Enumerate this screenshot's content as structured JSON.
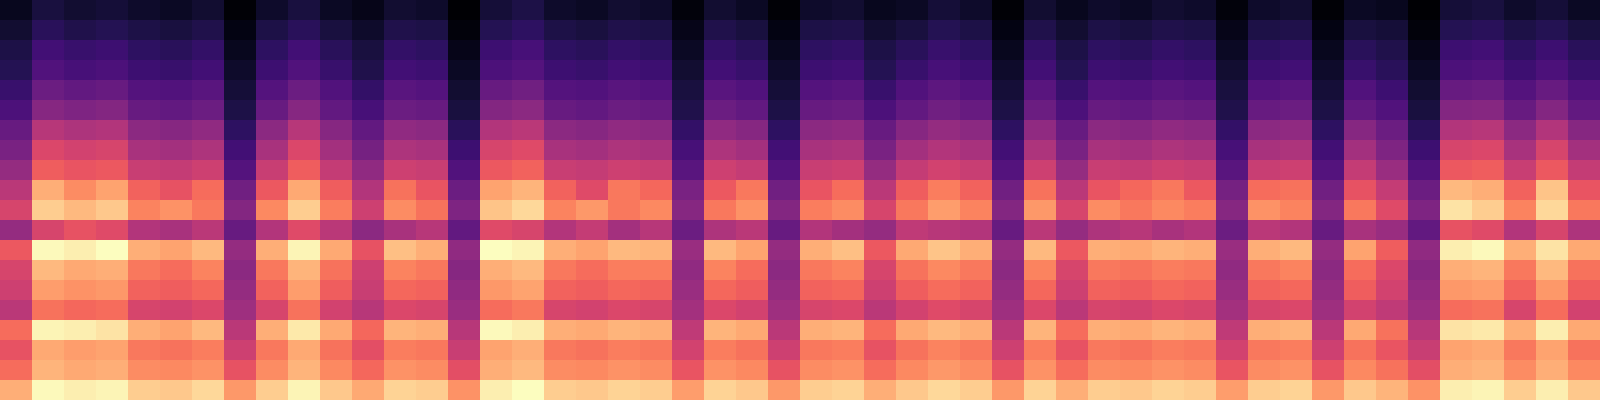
{
  "chart_data": {
    "type": "heatmap",
    "tick_labels": false,
    "color": "magma",
    "values": [
      [
        12,
        17,
        15,
        16,
        14,
        13,
        15,
        8,
        14,
        17,
        13,
        11,
        15,
        14,
        7,
        16,
        18,
        14,
        13,
        15,
        14,
        9,
        15,
        13,
        8,
        14,
        15,
        12,
        13,
        16,
        14,
        8,
        15,
        12,
        14,
        13,
        15,
        14,
        9,
        14,
        15,
        8,
        13,
        12,
        7,
        16,
        17,
        14,
        16,
        13
      ],
      [
        15,
        21,
        19,
        20,
        18,
        17,
        19,
        10,
        18,
        21,
        17,
        14,
        19,
        18,
        9,
        20,
        22,
        18,
        17,
        19,
        18,
        11,
        19,
        17,
        10,
        18,
        19,
        15,
        17,
        20,
        18,
        10,
        19,
        15,
        18,
        17,
        19,
        18,
        11,
        18,
        19,
        10,
        17,
        16,
        9,
        20,
        21,
        18,
        20,
        17
      ],
      [
        18,
        26,
        24,
        25,
        22,
        21,
        23,
        12,
        22,
        26,
        21,
        17,
        23,
        22,
        11,
        25,
        27,
        22,
        21,
        23,
        22,
        13,
        23,
        21,
        12,
        22,
        23,
        18,
        21,
        24,
        22,
        12,
        23,
        18,
        22,
        21,
        23,
        22,
        13,
        22,
        23,
        12,
        21,
        19,
        11,
        25,
        26,
        22,
        25,
        21
      ],
      [
        20,
        29,
        27,
        28,
        25,
        24,
        26,
        14,
        25,
        29,
        24,
        19,
        26,
        25,
        13,
        28,
        30,
        25,
        24,
        26,
        25,
        15,
        26,
        24,
        14,
        25,
        26,
        20,
        24,
        27,
        25,
        14,
        26,
        20,
        25,
        24,
        26,
        25,
        15,
        25,
        26,
        14,
        24,
        21,
        13,
        28,
        29,
        25,
        28,
        24
      ],
      [
        24,
        35,
        33,
        34,
        30,
        29,
        31,
        16,
        30,
        35,
        29,
        23,
        31,
        30,
        15,
        34,
        36,
        30,
        29,
        31,
        30,
        17,
        31,
        29,
        16,
        30,
        31,
        24,
        29,
        32,
        30,
        16,
        31,
        24,
        30,
        29,
        31,
        30,
        17,
        30,
        31,
        16,
        29,
        25,
        15,
        34,
        35,
        30,
        34,
        29
      ],
      [
        28,
        41,
        39,
        40,
        34,
        33,
        35,
        18,
        34,
        41,
        33,
        27,
        35,
        34,
        17,
        40,
        42,
        34,
        33,
        35,
        34,
        19,
        35,
        33,
        18,
        34,
        35,
        28,
        33,
        36,
        34,
        18,
        35,
        28,
        34,
        33,
        35,
        34,
        19,
        34,
        35,
        18,
        33,
        29,
        17,
        40,
        41,
        34,
        40,
        33
      ],
      [
        34,
        51,
        49,
        50,
        42,
        41,
        43,
        22,
        42,
        51,
        41,
        33,
        43,
        42,
        21,
        50,
        52,
        42,
        41,
        43,
        42,
        23,
        43,
        41,
        22,
        42,
        43,
        34,
        41,
        44,
        42,
        22,
        43,
        34,
        42,
        41,
        43,
        42,
        23,
        42,
        43,
        22,
        41,
        35,
        21,
        50,
        51,
        42,
        50,
        41
      ],
      [
        38,
        59,
        57,
        58,
        48,
        47,
        49,
        26,
        48,
        59,
        47,
        37,
        49,
        48,
        25,
        58,
        60,
        48,
        47,
        49,
        48,
        27,
        49,
        47,
        26,
        48,
        49,
        38,
        47,
        50,
        48,
        26,
        49,
        38,
        48,
        47,
        49,
        48,
        27,
        48,
        49,
        26,
        47,
        39,
        25,
        58,
        59,
        48,
        58,
        47
      ],
      [
        44,
        65,
        63,
        64,
        55,
        54,
        56,
        30,
        55,
        65,
        54,
        43,
        56,
        55,
        29,
        64,
        66,
        55,
        54,
        56,
        55,
        31,
        56,
        54,
        30,
        55,
        56,
        44,
        54,
        57,
        55,
        30,
        56,
        44,
        55,
        54,
        56,
        55,
        31,
        55,
        56,
        30,
        54,
        45,
        29,
        64,
        65,
        55,
        64,
        54
      ],
      [
        52,
        80,
        74,
        78,
        66,
        62,
        68,
        36,
        64,
        79,
        65,
        50,
        69,
        63,
        35,
        78,
        81,
        66,
        60,
        70,
        67,
        38,
        64,
        70,
        36,
        63,
        68,
        52,
        65,
        71,
        66,
        36,
        69,
        52,
        63,
        67,
        70,
        64,
        37,
        68,
        69,
        36,
        62,
        54,
        35,
        82,
        80,
        66,
        84,
        63
      ],
      [
        58,
        86,
        82,
        85,
        72,
        75,
        70,
        40,
        73,
        86,
        71,
        56,
        74,
        69,
        39,
        84,
        88,
        72,
        76,
        70,
        73,
        41,
        70,
        75,
        40,
        71,
        74,
        58,
        70,
        77,
        72,
        40,
        76,
        58,
        74,
        70,
        73,
        71,
        41,
        75,
        72,
        40,
        70,
        60,
        39,
        90,
        86,
        72,
        88,
        70
      ],
      [
        44,
        58,
        62,
        60,
        50,
        48,
        52,
        34,
        50,
        60,
        52,
        42,
        48,
        51,
        33,
        60,
        58,
        50,
        54,
        47,
        51,
        35,
        49,
        52,
        34,
        50,
        47,
        44,
        53,
        51,
        50,
        34,
        52,
        44,
        49,
        51,
        48,
        50,
        35,
        52,
        50,
        34,
        48,
        45,
        33,
        62,
        60,
        50,
        58,
        49
      ],
      [
        64,
        94,
        92,
        95,
        80,
        78,
        82,
        44,
        80,
        93,
        79,
        62,
        83,
        80,
        43,
        95,
        93,
        80,
        78,
        82,
        81,
        45,
        82,
        78,
        44,
        80,
        83,
        64,
        79,
        84,
        80,
        44,
        82,
        64,
        80,
        79,
        81,
        80,
        45,
        80,
        82,
        44,
        78,
        65,
        43,
        92,
        94,
        80,
        90,
        79
      ],
      [
        58,
        82,
        79,
        80,
        70,
        68,
        72,
        42,
        70,
        81,
        69,
        56,
        72,
        70,
        41,
        80,
        82,
        70,
        68,
        71,
        71,
        43,
        72,
        68,
        42,
        70,
        72,
        58,
        69,
        73,
        70,
        42,
        72,
        58,
        70,
        69,
        71,
        70,
        43,
        70,
        72,
        42,
        68,
        59,
        41,
        80,
        81,
        70,
        82,
        69
      ],
      [
        56,
        77,
        75,
        76,
        66,
        65,
        67,
        44,
        66,
        77,
        65,
        55,
        67,
        66,
        43,
        76,
        78,
        66,
        65,
        67,
        66,
        45,
        67,
        65,
        44,
        66,
        67,
        56,
        65,
        68,
        66,
        44,
        67,
        56,
        66,
        65,
        67,
        66,
        45,
        66,
        67,
        44,
        65,
        57,
        43,
        76,
        77,
        66,
        76,
        65
      ],
      [
        52,
        69,
        67,
        68,
        58,
        57,
        59,
        46,
        58,
        69,
        57,
        51,
        59,
        58,
        45,
        68,
        70,
        58,
        57,
        59,
        58,
        47,
        59,
        57,
        46,
        58,
        59,
        52,
        57,
        60,
        58,
        46,
        59,
        52,
        58,
        57,
        59,
        58,
        47,
        58,
        59,
        46,
        57,
        53,
        45,
        68,
        69,
        58,
        68,
        57
      ],
      [
        68,
        93,
        92,
        90,
        80,
        78,
        82,
        52,
        80,
        91,
        79,
        67,
        81,
        80,
        51,
        94,
        92,
        80,
        79,
        81,
        80,
        53,
        81,
        79,
        52,
        80,
        81,
        68,
        79,
        82,
        80,
        52,
        81,
        68,
        80,
        79,
        81,
        80,
        53,
        80,
        81,
        52,
        79,
        69,
        51,
        90,
        91,
        80,
        92,
        79
      ],
      [
        62,
        79,
        77,
        78,
        70,
        69,
        71,
        56,
        70,
        79,
        69,
        61,
        71,
        70,
        55,
        78,
        80,
        70,
        69,
        71,
        70,
        57,
        71,
        69,
        56,
        70,
        71,
        62,
        69,
        72,
        70,
        56,
        71,
        62,
        70,
        69,
        71,
        70,
        57,
        70,
        71,
        56,
        69,
        63,
        55,
        78,
        79,
        70,
        78,
        69
      ],
      [
        68,
        81,
        79,
        80,
        74,
        73,
        75,
        62,
        74,
        81,
        73,
        67,
        75,
        74,
        61,
        80,
        82,
        74,
        73,
        75,
        74,
        63,
        75,
        73,
        62,
        74,
        75,
        68,
        73,
        76,
        74,
        62,
        75,
        68,
        74,
        73,
        75,
        74,
        63,
        74,
        75,
        62,
        73,
        69,
        61,
        80,
        81,
        74,
        80,
        73
      ],
      [
        80,
        94,
        92,
        93,
        86,
        85,
        88,
        76,
        86,
        93,
        85,
        79,
        87,
        86,
        75,
        92,
        95,
        86,
        85,
        87,
        86,
        77,
        87,
        85,
        76,
        86,
        87,
        80,
        85,
        88,
        86,
        76,
        87,
        80,
        86,
        85,
        87,
        86,
        77,
        86,
        87,
        76,
        85,
        81,
        75,
        92,
        93,
        86,
        92,
        85
      ]
    ]
  }
}
